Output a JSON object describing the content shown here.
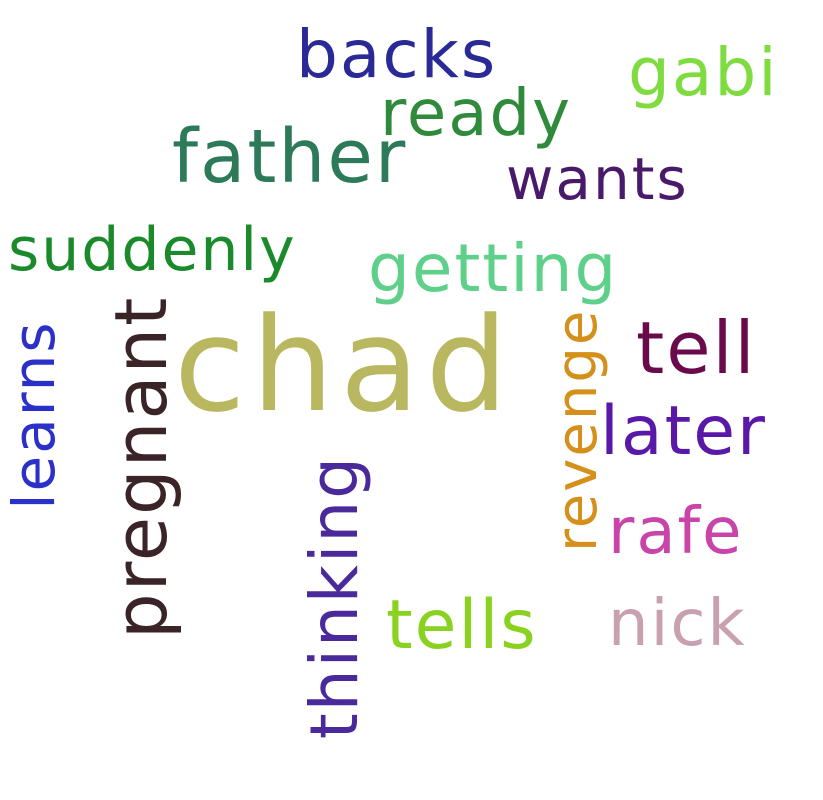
{
  "words": [
    {
      "text": "backs",
      "color": "#2a2a96",
      "vertical": false
    },
    {
      "text": "gabi",
      "color": "#7edb40",
      "vertical": false
    },
    {
      "text": "ready",
      "color": "#2f8a3c",
      "vertical": false
    },
    {
      "text": "father",
      "color": "#2c7a5a",
      "vertical": false
    },
    {
      "text": "wants",
      "color": "#4a1a6a",
      "vertical": false
    },
    {
      "text": "suddenly",
      "color": "#1a8a2a",
      "vertical": false
    },
    {
      "text": "getting",
      "color": "#5ed08a",
      "vertical": false
    },
    {
      "text": "learns",
      "color": "#2a30c8",
      "vertical": true
    },
    {
      "text": "pregnant",
      "color": "#3a2428",
      "vertical": true
    },
    {
      "text": "chad",
      "color": "#b9b860",
      "vertical": false
    },
    {
      "text": "revenge",
      "color": "#d4901a",
      "vertical": true
    },
    {
      "text": "tell",
      "color": "#6a0a4a",
      "vertical": false
    },
    {
      "text": "later",
      "color": "#5a18a8",
      "vertical": false
    },
    {
      "text": "rafe",
      "color": "#c844a8",
      "vertical": false
    },
    {
      "text": "thinking",
      "color": "#4a2a9a",
      "vertical": true
    },
    {
      "text": "tells",
      "color": "#8ad220",
      "vertical": false
    },
    {
      "text": "nick",
      "color": "#c8a0b0",
      "vertical": false
    }
  ]
}
